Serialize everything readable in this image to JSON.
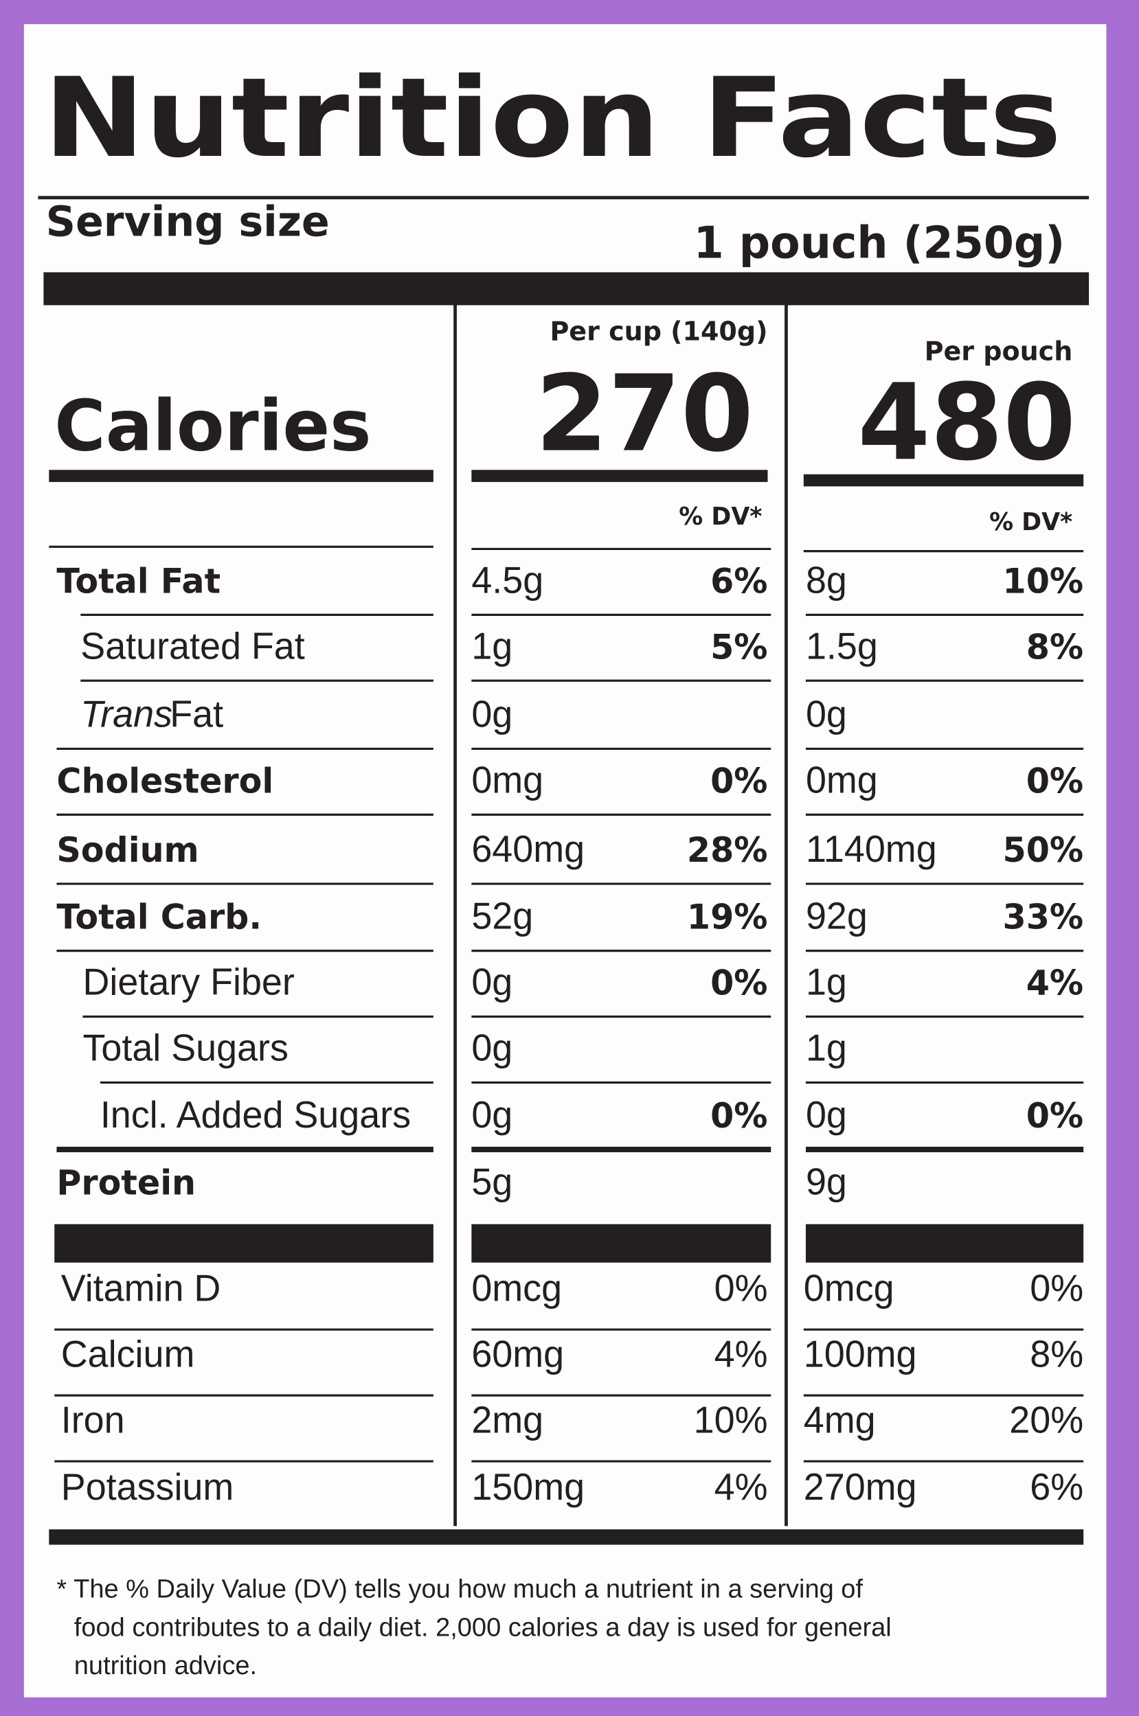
{
  "title": "Nutrition Facts",
  "serving": {
    "label": "Serving size",
    "value": "1 pouch (250g)"
  },
  "columns": {
    "cup": {
      "header": "Per cup (140g)",
      "calories": "270",
      "dv_header": "% DV*"
    },
    "pouch": {
      "header": "Per pouch",
      "calories": "480",
      "dv_header": "% DV*"
    }
  },
  "calories_label": "Calories",
  "rows": [
    {
      "name": "Total Fat",
      "cup_amount": "4.5g",
      "cup_dv": "6%",
      "pouch_amount": "8g",
      "pouch_dv": "10%"
    },
    {
      "name": "Saturated Fat",
      "cup_amount": "1g",
      "cup_dv": "5%",
      "pouch_amount": "1.5g",
      "pouch_dv": "8%"
    },
    {
      "name_italic": "Trans",
      "name": "Fat",
      "cup_amount": "0g",
      "pouch_amount": "0g"
    },
    {
      "name": "Cholesterol",
      "cup_amount": "0mg",
      "cup_dv": "0%",
      "pouch_amount": "0mg",
      "pouch_dv": "0%"
    },
    {
      "name": "Sodium",
      "cup_amount": "640mg",
      "cup_dv": "28%",
      "pouch_amount": "1140mg",
      "pouch_dv": "50%"
    },
    {
      "name": "Total Carb.",
      "cup_amount": "52g",
      "cup_dv": "19%",
      "pouch_amount": "92g",
      "pouch_dv": "33%"
    },
    {
      "name": "Dietary Fiber",
      "cup_amount": "0g",
      "cup_dv": "0%",
      "pouch_amount": "1g",
      "pouch_dv": "4%"
    },
    {
      "name": "Total Sugars",
      "cup_amount": "0g",
      "pouch_amount": "1g"
    },
    {
      "name": "Incl. Added Sugars",
      "cup_amount": "0g",
      "cup_dv": "0%",
      "pouch_amount": "0g",
      "pouch_dv": "0%"
    },
    {
      "name": "Protein",
      "cup_amount": "5g",
      "pouch_amount": "9g"
    }
  ],
  "vitamins": [
    {
      "name": "Vitamin D",
      "cup_amount": "0mcg",
      "cup_dv": "0%",
      "pouch_amount": "0mcg",
      "pouch_dv": "0%"
    },
    {
      "name": "Calcium",
      "cup_amount": "60mg",
      "cup_dv": "4%",
      "pouch_amount": "100mg",
      "pouch_dv": "8%"
    },
    {
      "name": "Iron",
      "cup_amount": "2mg",
      "cup_dv": "10%",
      "pouch_amount": "4mg",
      "pouch_dv": "20%"
    },
    {
      "name": "Potassium",
      "cup_amount": "150mg",
      "cup_dv": "4%",
      "pouch_amount": "270mg",
      "pouch_dv": "6%"
    }
  ],
  "footnote": [
    "* The % Daily Value (DV) tells you how much a nutrient in a serving of",
    "food contributes to a daily diet. 2,000 calories a day is used for general",
    "nutrition advice."
  ]
}
